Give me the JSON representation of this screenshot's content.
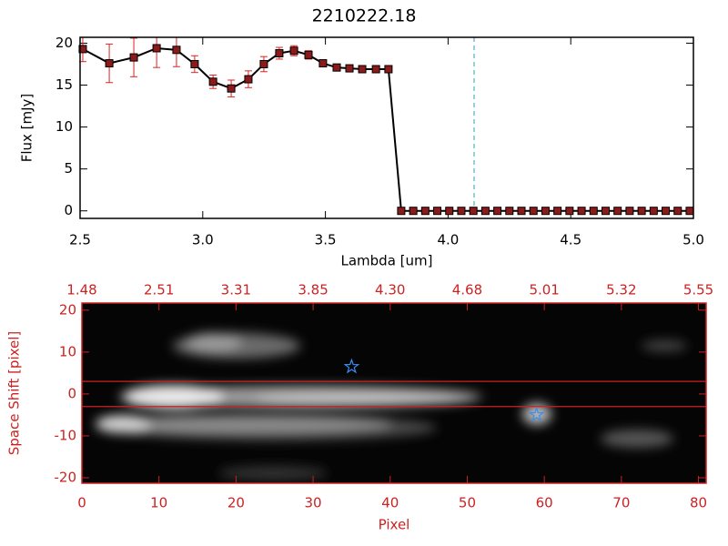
{
  "chart_data": [
    {
      "type": "line",
      "title": "2210222.18",
      "xlabel": "Lambda [um]",
      "ylabel": "Flux [mJy]",
      "x": [
        2.511,
        2.619,
        2.719,
        2.812,
        2.893,
        2.967,
        3.042,
        3.116,
        3.186,
        3.249,
        3.312,
        3.372,
        3.431,
        3.49,
        3.546,
        3.598,
        3.65,
        3.706,
        3.757,
        3.809,
        3.858,
        3.907,
        3.956,
        4.005,
        4.054,
        4.103,
        4.152,
        4.201,
        4.25,
        4.299,
        4.348,
        4.397,
        4.446,
        4.495,
        4.544,
        4.593,
        4.642,
        4.691,
        4.74,
        4.789,
        4.838,
        4.887,
        4.936,
        4.985
      ],
      "series": [
        {
          "color": "#000000",
          "marker_color": "#8b1a1a",
          "error_color": "#dd2222",
          "values": [
            19.3,
            17.6,
            18.3,
            19.4,
            19.2,
            17.5,
            15.4,
            14.6,
            15.7,
            17.5,
            18.8,
            19.1,
            18.6,
            17.6,
            17.1,
            17.0,
            16.9,
            16.9,
            16.9,
            0,
            0,
            0,
            0,
            0,
            0,
            0,
            0,
            0,
            0,
            0,
            0,
            0,
            0,
            0,
            0,
            0,
            0,
            0,
            0,
            0,
            0,
            0,
            0,
            0
          ],
          "errors": [
            1.5,
            2.3,
            2.3,
            2.3,
            2.0,
            1.0,
            0.8,
            1.0,
            1.0,
            0.9,
            0.7,
            0.6,
            0.5,
            0.3,
            0.3,
            0.3,
            0.3,
            0.3,
            0.3,
            null,
            null,
            null,
            null,
            null,
            null,
            null,
            null,
            null,
            null,
            null,
            null,
            null,
            null,
            null,
            null,
            null,
            null,
            null,
            null,
            null,
            null,
            null,
            null,
            null
          ]
        }
      ],
      "xlim": [
        2.5,
        5.0
      ],
      "ylim": [
        -0.9,
        20.7
      ],
      "xticks": [
        2.5,
        {
          "value": 3,
          "label": "3.0"
        },
        3.5,
        {
          "value": 4,
          "label": "4.0"
        },
        4.5,
        {
          "value": 5,
          "label": "5.0"
        }
      ],
      "yticks": [
        0,
        5,
        10,
        15,
        20
      ],
      "vline": 4.106,
      "vline_color": "#2aa0c0"
    },
    {
      "type": "image",
      "xlabel": "Pixel",
      "ylabel": "Space Shift [pixel]",
      "xlim": [
        0,
        81
      ],
      "ylim": [
        -21.3,
        21.7
      ],
      "xticks": [
        0,
        10,
        20,
        30,
        40,
        50,
        60,
        70,
        80
      ],
      "x2ticklabels": [
        "1.48",
        "2.51",
        "3.31",
        "3.85",
        "4.30",
        "4.68",
        "5.01",
        "5.32",
        "5.55"
      ],
      "yticks": [
        -20,
        -10,
        0,
        10,
        20
      ],
      "aperture": [
        -3,
        3
      ],
      "aperture_color": "#cc2222",
      "stars": {
        "x": [
          35,
          59
        ],
        "y": [
          6.5,
          -5
        ],
        "color": "#3a8ef0"
      },
      "axis_color": "#cc2222"
    }
  ]
}
